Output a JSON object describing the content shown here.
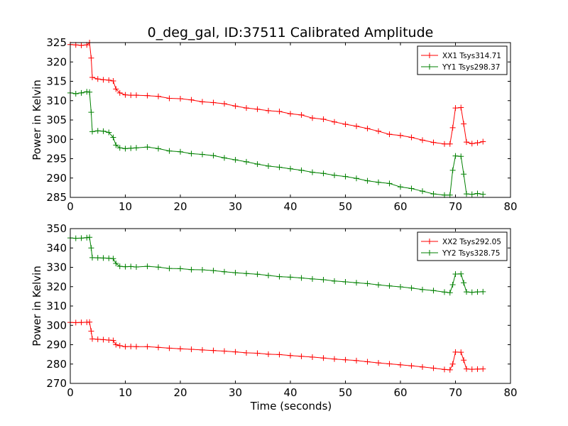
{
  "title": "0_deg_gal, ID:37511 Calibrated Amplitude",
  "chart_data": [
    {
      "type": "line",
      "ylabel": "Power in Kelvin",
      "xlabel": "",
      "xlim": [
        0,
        80
      ],
      "ylim": [
        285,
        325
      ],
      "xticks": [
        "0",
        "10",
        "20",
        "30",
        "40",
        "50",
        "60",
        "70",
        "80"
      ],
      "yticks": [
        "285",
        "290",
        "295",
        "300",
        "305",
        "310",
        "315",
        "320",
        "325"
      ],
      "legend_position": "top-right",
      "series": [
        {
          "name": "XX1 Tsys314.71",
          "color": "#ff0000",
          "x": [
            0,
            1,
            2,
            3,
            3.5,
            3.8,
            4,
            5,
            6,
            7,
            7.8,
            8.3,
            9,
            10,
            11,
            12,
            14,
            16,
            18,
            20,
            22,
            24,
            26,
            28,
            30,
            32,
            34,
            36,
            38,
            40,
            42,
            44,
            46,
            48,
            50,
            52,
            54,
            56,
            58,
            60,
            62,
            64,
            66,
            68,
            69,
            69.5,
            70,
            71,
            71.5,
            72,
            73,
            74,
            75
          ],
          "y": [
            324.5,
            324.4,
            324.3,
            324.4,
            325,
            321,
            316,
            315.6,
            315.4,
            315.3,
            315.1,
            313,
            312,
            311.5,
            311.4,
            311.4,
            311.3,
            311.1,
            310.6,
            310.5,
            310.2,
            309.7,
            309.5,
            309.2,
            308.6,
            308.1,
            307.8,
            307.4,
            307.2,
            306.6,
            306.3,
            305.5,
            305.2,
            304.5,
            303.9,
            303.4,
            302.8,
            302.1,
            301.3,
            301.0,
            300.5,
            299.8,
            299.2,
            298.8,
            298.8,
            303,
            308.1,
            308.2,
            304,
            299.3,
            298.9,
            299.1,
            299.4
          ]
        },
        {
          "name": "YY1 Tsys298.37",
          "color": "#008000",
          "x": [
            0,
            1,
            2,
            3,
            3.5,
            3.8,
            4,
            5,
            6,
            7,
            7.8,
            8.3,
            9,
            10,
            11,
            12,
            14,
            16,
            18,
            20,
            22,
            24,
            26,
            28,
            30,
            32,
            34,
            36,
            38,
            40,
            42,
            44,
            46,
            48,
            50,
            52,
            54,
            56,
            58,
            60,
            62,
            64,
            66,
            68,
            69,
            69.5,
            70,
            71,
            71.5,
            72,
            73,
            74,
            75
          ],
          "y": [
            312.0,
            311.8,
            312.0,
            312.3,
            312.2,
            307,
            302.0,
            302.2,
            302.1,
            301.8,
            300.5,
            298.5,
            297.8,
            297.6,
            297.7,
            297.8,
            298.0,
            297.6,
            297.0,
            296.8,
            296.3,
            296.1,
            295.8,
            295.2,
            294.7,
            294.2,
            293.6,
            293.1,
            292.8,
            292.4,
            292.0,
            291.5,
            291.2,
            290.7,
            290.4,
            289.9,
            289.3,
            288.9,
            288.6,
            287.7,
            287.3,
            286.6,
            285.9,
            285.6,
            285.6,
            292,
            295.7,
            295.6,
            291,
            285.9,
            285.8,
            286.0,
            285.8
          ]
        }
      ]
    },
    {
      "type": "line",
      "ylabel": "Power in Kelvin",
      "xlabel": "Time (seconds)",
      "xlim": [
        0,
        80
      ],
      "ylim": [
        270,
        350
      ],
      "xticks": [
        "0",
        "10",
        "20",
        "30",
        "40",
        "50",
        "60",
        "70",
        "80"
      ],
      "yticks": [
        "270",
        "280",
        "290",
        "300",
        "310",
        "320",
        "330",
        "340",
        "350"
      ],
      "legend_position": "top-right",
      "series": [
        {
          "name": "XX2 Tsys292.05",
          "color": "#ff0000",
          "x": [
            0,
            1,
            2,
            3,
            3.5,
            3.8,
            4,
            5,
            6,
            7,
            7.8,
            8.3,
            9,
            10,
            11,
            12,
            14,
            16,
            18,
            20,
            22,
            24,
            26,
            28,
            30,
            32,
            34,
            36,
            38,
            40,
            42,
            44,
            46,
            48,
            50,
            52,
            54,
            56,
            58,
            60,
            62,
            64,
            66,
            68,
            69,
            69.5,
            70,
            71,
            71.5,
            72,
            73,
            74,
            75
          ],
          "y": [
            301.5,
            301.4,
            301.5,
            301.6,
            301.7,
            297,
            293.0,
            292.8,
            292.6,
            292.4,
            292.2,
            290,
            289.5,
            289.0,
            289.1,
            289.0,
            289.0,
            288.6,
            288.2,
            287.9,
            287.6,
            287.3,
            287.0,
            286.7,
            286.3,
            285.8,
            285.6,
            285.1,
            284.9,
            284.4,
            284.0,
            283.6,
            283.1,
            282.6,
            282.2,
            281.8,
            281.2,
            280.6,
            280.1,
            279.6,
            279.1,
            278.5,
            277.9,
            277.2,
            277.0,
            280,
            286.2,
            286.1,
            282,
            277.5,
            277.3,
            277.4,
            277.5
          ]
        },
        {
          "name": "YY2 Tsys328.75",
          "color": "#008000",
          "x": [
            0,
            1,
            2,
            3,
            3.5,
            3.8,
            4,
            5,
            6,
            7,
            7.8,
            8.3,
            9,
            10,
            11,
            12,
            14,
            16,
            18,
            20,
            22,
            24,
            26,
            28,
            30,
            32,
            34,
            36,
            38,
            40,
            42,
            44,
            46,
            48,
            50,
            52,
            54,
            56,
            58,
            60,
            62,
            64,
            66,
            68,
            69,
            69.5,
            70,
            71,
            71.5,
            72,
            73,
            74,
            75
          ],
          "y": [
            345.2,
            345.0,
            345.1,
            345.3,
            345.5,
            340,
            335.0,
            334.9,
            334.8,
            334.7,
            334.5,
            332,
            330.5,
            330.3,
            330.4,
            330.2,
            330.5,
            330.1,
            329.4,
            329.3,
            328.8,
            328.7,
            328.3,
            327.7,
            327.2,
            326.8,
            326.4,
            325.8,
            325.2,
            324.9,
            324.5,
            324.0,
            323.6,
            322.9,
            322.5,
            322.0,
            321.6,
            320.9,
            320.4,
            319.9,
            319.3,
            318.5,
            318.0,
            317.2,
            316.9,
            321,
            326.5,
            326.6,
            322,
            317.3,
            317.1,
            317.3,
            317.4
          ]
        }
      ]
    }
  ]
}
